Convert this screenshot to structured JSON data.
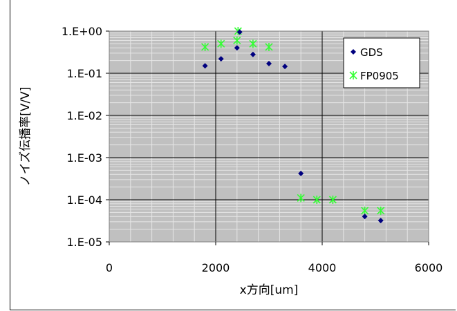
{
  "chart_data": {
    "type": "scatter",
    "title": "",
    "xlabel": "x方向[um]",
    "ylabel": "ノイズ伝播率[V/V]",
    "xlim": [
      0,
      6000
    ],
    "ylim": [
      1e-05,
      1
    ],
    "yscale": "log",
    "xticks": [
      0,
      2000,
      4000,
      6000
    ],
    "xtick_labels": [
      "0",
      "2000",
      "4000",
      "6000"
    ],
    "yticks": [
      1,
      0.1,
      0.01,
      0.001,
      0.0001,
      1e-05
    ],
    "ytick_labels": [
      "1.E+00",
      "1.E-01",
      "1.E-02",
      "1.E-03",
      "1.E-04",
      "1.E-05"
    ],
    "grid": true,
    "legend_position": "top-right",
    "series": [
      {
        "name": "GDS",
        "color": "#00007f",
        "marker": "diamond",
        "points": [
          [
            1800,
            0.15
          ],
          [
            2100,
            0.22
          ],
          [
            2400,
            0.4
          ],
          [
            2450,
            0.95
          ],
          [
            2700,
            0.28
          ],
          [
            3000,
            0.17
          ],
          [
            3300,
            0.145
          ],
          [
            3600,
            0.00042
          ],
          [
            4800,
            4e-05
          ],
          [
            5100,
            3.2e-05
          ]
        ]
      },
      {
        "name": "FP0905",
        "color": "#33ff33",
        "marker": "asterisk",
        "points": [
          [
            1800,
            0.42
          ],
          [
            2100,
            0.5
          ],
          [
            2400,
            0.6
          ],
          [
            2420,
            1.0
          ],
          [
            2700,
            0.5
          ],
          [
            3000,
            0.42
          ],
          [
            3600,
            0.00011
          ],
          [
            3900,
            0.0001
          ],
          [
            4200,
            0.0001
          ],
          [
            4800,
            5.5e-05
          ],
          [
            5100,
            5.5e-05
          ]
        ]
      }
    ]
  }
}
